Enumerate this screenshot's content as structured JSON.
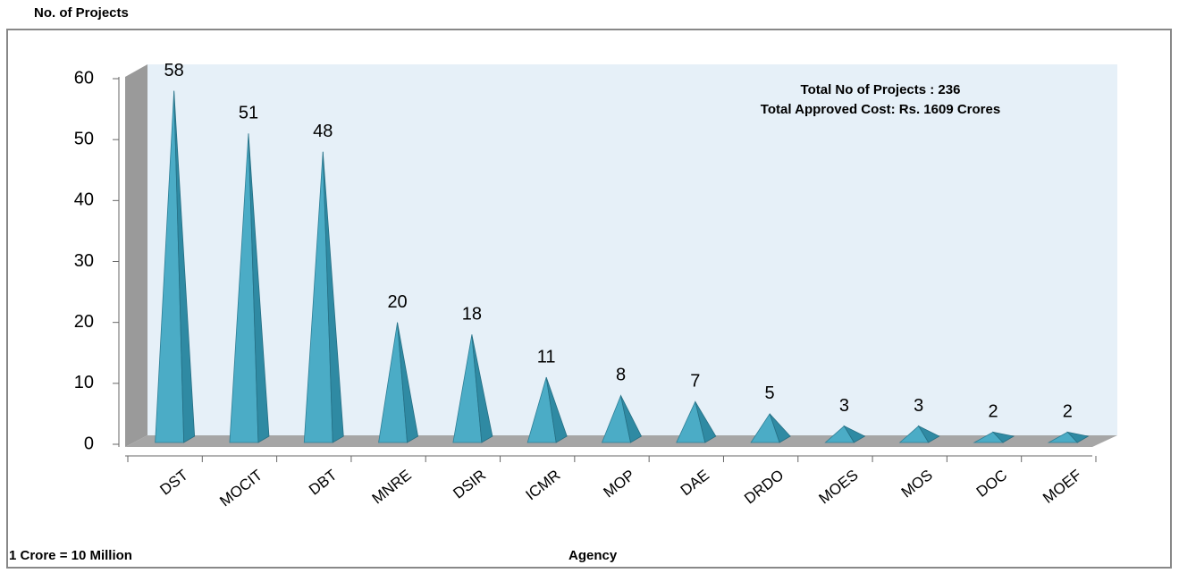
{
  "chart_data": {
    "type": "pyramid",
    "y_label": "No. of Projects",
    "x_label": "Agency",
    "footnote": "1 Crore = 10 Million",
    "annotations": [
      "Total No of Projects : 236",
      "Total Approved Cost: Rs. 1609 Crores"
    ],
    "categories": [
      "DST",
      "MOCIT",
      "DBT",
      "MNRE",
      "DSIR",
      "ICMR",
      "MOP",
      "DAE",
      "DRDO",
      "MOES",
      "MOS",
      "DOC",
      "MOEF"
    ],
    "values": [
      58,
      51,
      48,
      20,
      18,
      11,
      8,
      7,
      5,
      3,
      3,
      2,
      2
    ],
    "color": "#4bacc6",
    "ylim": [
      0,
      60
    ],
    "yticks": [
      0,
      10,
      20,
      30,
      40,
      50,
      60
    ]
  }
}
